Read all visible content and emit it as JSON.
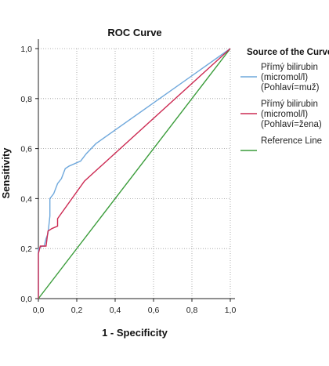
{
  "chart_data": {
    "type": "line",
    "title": "ROC Curve",
    "xlabel": "1 - Specificity",
    "ylabel": "Sensitivity",
    "xlim": [
      0,
      1
    ],
    "ylim": [
      0,
      1
    ],
    "x_ticks": [
      "0,0",
      "0,2",
      "0,4",
      "0,6",
      "0,8",
      "1,0"
    ],
    "y_ticks": [
      "0,0",
      "0,2",
      "0,4",
      "0,6",
      "0,8",
      "1,0"
    ],
    "grid": true,
    "legend": {
      "title": "Source of the Curve",
      "placement": "right"
    },
    "series": [
      {
        "name": "Přímý bilirubin (micromol/l) (Pohlaví=muž)",
        "legend_lines": [
          "Přímý bilirubin",
          "(micromol/l)",
          "(Pohlaví=muž)"
        ],
        "color": "#6fa8dc",
        "step": true,
        "points": [
          [
            0,
            0
          ],
          [
            0,
            0.2
          ],
          [
            0.02,
            0.21
          ],
          [
            0.03,
            0.21
          ],
          [
            0.04,
            0.24
          ],
          [
            0.05,
            0.26
          ],
          [
            0.06,
            0.33
          ],
          [
            0.06,
            0.4
          ],
          [
            0.08,
            0.42
          ],
          [
            0.1,
            0.46
          ],
          [
            0.12,
            0.48
          ],
          [
            0.14,
            0.52
          ],
          [
            0.16,
            0.53
          ],
          [
            0.22,
            0.55
          ],
          [
            0.25,
            0.58
          ],
          [
            0.3,
            0.62
          ],
          [
            1,
            1
          ]
        ]
      },
      {
        "name": "Přímý bilirubin (micromol/l) (Pohlaví=žena)",
        "legend_lines": [
          "Přímý bilirubin",
          "(micromol/l)",
          "(Pohlaví=žena)"
        ],
        "color": "#cc2a52",
        "step": true,
        "points": [
          [
            0,
            0
          ],
          [
            0,
            0.18
          ],
          [
            0.01,
            0.21
          ],
          [
            0.04,
            0.21
          ],
          [
            0.05,
            0.27
          ],
          [
            0.07,
            0.28
          ],
          [
            0.1,
            0.29
          ],
          [
            0.1,
            0.32
          ],
          [
            0.24,
            0.47
          ],
          [
            1,
            1
          ]
        ]
      },
      {
        "name": "Reference Line",
        "legend_lines": [
          "Reference Line"
        ],
        "color": "#3a9c3a",
        "step": false,
        "points": [
          [
            0,
            0
          ],
          [
            1,
            1
          ]
        ]
      }
    ]
  }
}
